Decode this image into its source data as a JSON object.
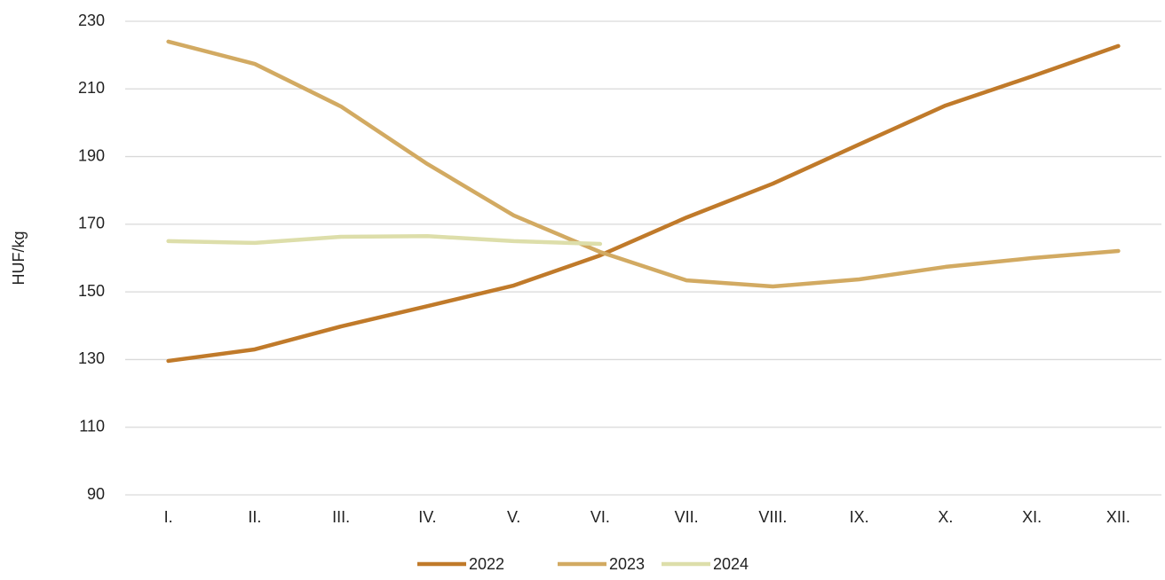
{
  "chart_data": {
    "type": "line",
    "y_label": "HUF/kg",
    "categories": [
      "I.",
      "II.",
      "III.",
      "IV.",
      "V.",
      "VI.",
      "VII.",
      "VIII.",
      "IX.",
      "X.",
      "XI.",
      "XII."
    ],
    "series": [
      {
        "name": "2022",
        "color": "#c07a2a",
        "values": [
          129.6,
          133,
          139.8,
          145.8,
          151.9,
          160.8,
          172,
          182,
          193.6,
          205.1,
          213.7,
          222.7
        ]
      },
      {
        "name": "2023",
        "color": "#d2aa62",
        "values": [
          224,
          217.4,
          204.8,
          187.8,
          172.6,
          161.8,
          153.4,
          151.6,
          153.7,
          157.4,
          160,
          162.1
        ]
      },
      {
        "name": "2024",
        "color": "#dddeaa",
        "values": [
          165,
          164.5,
          166.3,
          166.5,
          165,
          164.2,
          null,
          null,
          null,
          null,
          null,
          null
        ]
      }
    ],
    "ylim": [
      90,
      230
    ],
    "yticks": [
      90,
      110,
      130,
      150,
      170,
      190,
      210,
      230
    ],
    "grid": true,
    "legend": "bottom"
  }
}
